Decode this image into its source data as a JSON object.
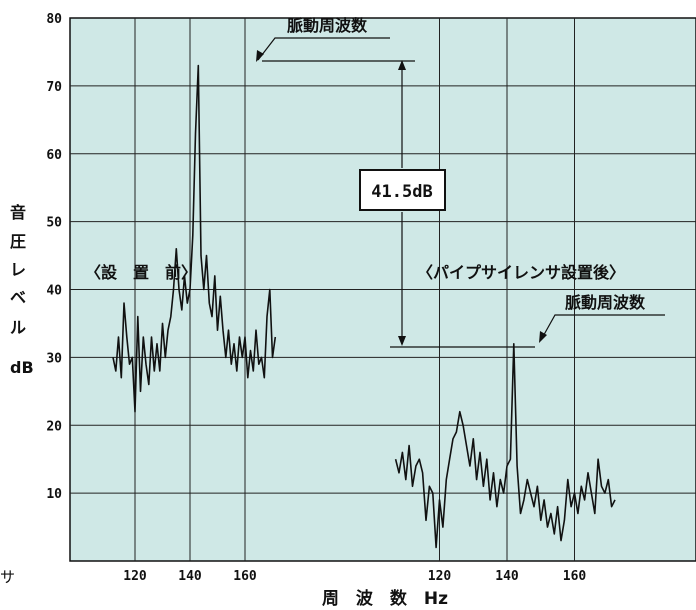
{
  "chart_data": {
    "type": "line",
    "ylim": [
      0,
      80
    ],
    "yticks": [
      "80",
      "70",
      "60",
      "50",
      "40",
      "30",
      "20",
      "10"
    ],
    "xticks_left": [
      "120",
      "140",
      "160"
    ],
    "xticks_right": [
      "120",
      "140",
      "160"
    ],
    "xlabel": "周　波　数　Hz",
    "ylabel": [
      "音",
      "圧",
      "レ",
      "ベ",
      "ル",
      "dB"
    ],
    "grid": true,
    "background": "#cfe8e6",
    "series": [
      {
        "name": "〈設　置　前〉",
        "x": [
          112,
          113,
          114,
          115,
          116,
          117,
          118,
          119,
          120,
          121,
          122,
          123,
          124,
          125,
          126,
          127,
          128,
          129,
          130,
          131,
          132,
          133,
          134,
          135,
          136,
          137,
          138,
          139,
          140,
          141,
          142,
          143,
          144,
          145,
          146,
          147,
          148,
          149,
          150,
          151,
          152,
          153,
          154,
          155,
          156,
          157,
          158,
          159,
          160,
          161,
          162,
          163,
          164,
          165,
          166,
          167,
          168,
          169,
          170,
          171
        ],
        "values": [
          30,
          28,
          33,
          27,
          38,
          33,
          29,
          30,
          22,
          36,
          25,
          33,
          29,
          26,
          33,
          28,
          32,
          28,
          35,
          30,
          34,
          36,
          40,
          46,
          40,
          37,
          42,
          38,
          40,
          48,
          63,
          73,
          45,
          40,
          45,
          38,
          36,
          42,
          34,
          39,
          34,
          30,
          34,
          29,
          32,
          28,
          33,
          30,
          33,
          27,
          31,
          28,
          34,
          29,
          30,
          27,
          36,
          40,
          30,
          33
        ]
      },
      {
        "name": "〈パイプサイレンサ設置後〉",
        "x": [
          107,
          108,
          109,
          110,
          111,
          112,
          113,
          114,
          115,
          116,
          117,
          118,
          119,
          120,
          121,
          122,
          123,
          124,
          125,
          126,
          127,
          128,
          129,
          130,
          131,
          132,
          133,
          134,
          135,
          136,
          137,
          138,
          139,
          140,
          141,
          142,
          143,
          144,
          145,
          146,
          147,
          148,
          149,
          150,
          151,
          152,
          153,
          154,
          155,
          156,
          157,
          158,
          159,
          160,
          161,
          162,
          163,
          164,
          165,
          166,
          167,
          168,
          169,
          170,
          171,
          172
        ],
        "values": [
          15,
          13,
          16,
          12,
          17,
          11,
          14,
          15,
          13,
          6,
          11,
          10,
          2,
          9,
          5,
          12,
          15,
          18,
          19,
          22,
          20,
          17,
          14,
          18,
          12,
          16,
          11,
          15,
          9,
          13,
          8,
          12,
          10,
          14,
          15,
          32,
          14,
          7,
          9,
          12,
          10,
          8,
          11,
          6,
          9,
          5,
          7,
          4,
          8,
          3,
          6,
          12,
          8,
          10,
          7,
          11,
          9,
          13,
          10,
          7,
          15,
          11,
          10,
          12,
          8,
          9
        ]
      }
    ],
    "annotations": {
      "peak_label_1": "脈動周波数",
      "peak_label_2": "脈動周波数",
      "difference": "41.5dB"
    }
  },
  "page_fragment": "サ"
}
